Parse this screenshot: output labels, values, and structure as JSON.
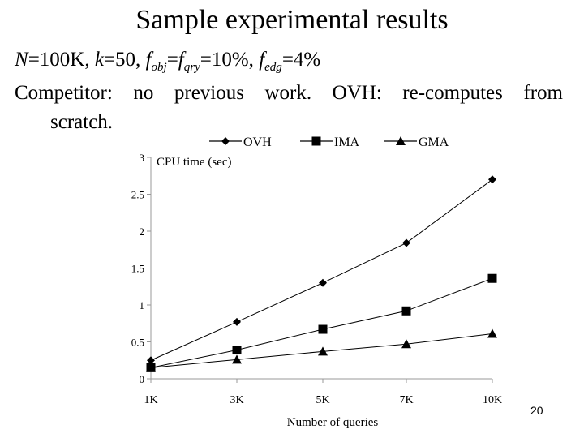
{
  "slide": {
    "title": "Sample experimental results",
    "params": {
      "n_var": "N",
      "n_val": "=100K, ",
      "k_var": "k",
      "k_val": "=50, ",
      "f1": "f",
      "f1_sub": "obj",
      "eq": "=",
      "f2": "f",
      "f2_sub": "qry",
      "f2_val": "=10%, ",
      "f3": "f",
      "f3_sub": "edg",
      "f3_val": "=4%"
    },
    "competitor_line1": "Competitor: no previous work. OVH: re-computes from",
    "competitor_line2": "scratch.",
    "page_number": "20"
  },
  "chart_data": {
    "type": "line",
    "categories": [
      "1K",
      "3K",
      "5K",
      "7K",
      "10K"
    ],
    "series": [
      {
        "name": "OVH",
        "marker": "diamond",
        "values": [
          0.25,
          0.77,
          1.3,
          1.84,
          2.7
        ]
      },
      {
        "name": "IMA",
        "marker": "square",
        "values": [
          0.15,
          0.39,
          0.67,
          0.92,
          1.36
        ]
      },
      {
        "name": "GMA",
        "marker": "triangle",
        "values": [
          0.15,
          0.26,
          0.37,
          0.47,
          0.61
        ]
      }
    ],
    "title": "",
    "xlabel": "Number of queries",
    "ylabel": "CPU time (sec)",
    "ylim": [
      0,
      3
    ],
    "yticks": [
      0,
      0.5,
      1,
      1.5,
      2,
      2.5,
      3
    ],
    "ytick_labels": [
      "0",
      "0.5",
      "1",
      "1.5",
      "2",
      "2.5",
      "3"
    ],
    "grid": false,
    "legend_position": "top",
    "colors": {
      "series": "#000000",
      "axis": "#999999"
    }
  }
}
